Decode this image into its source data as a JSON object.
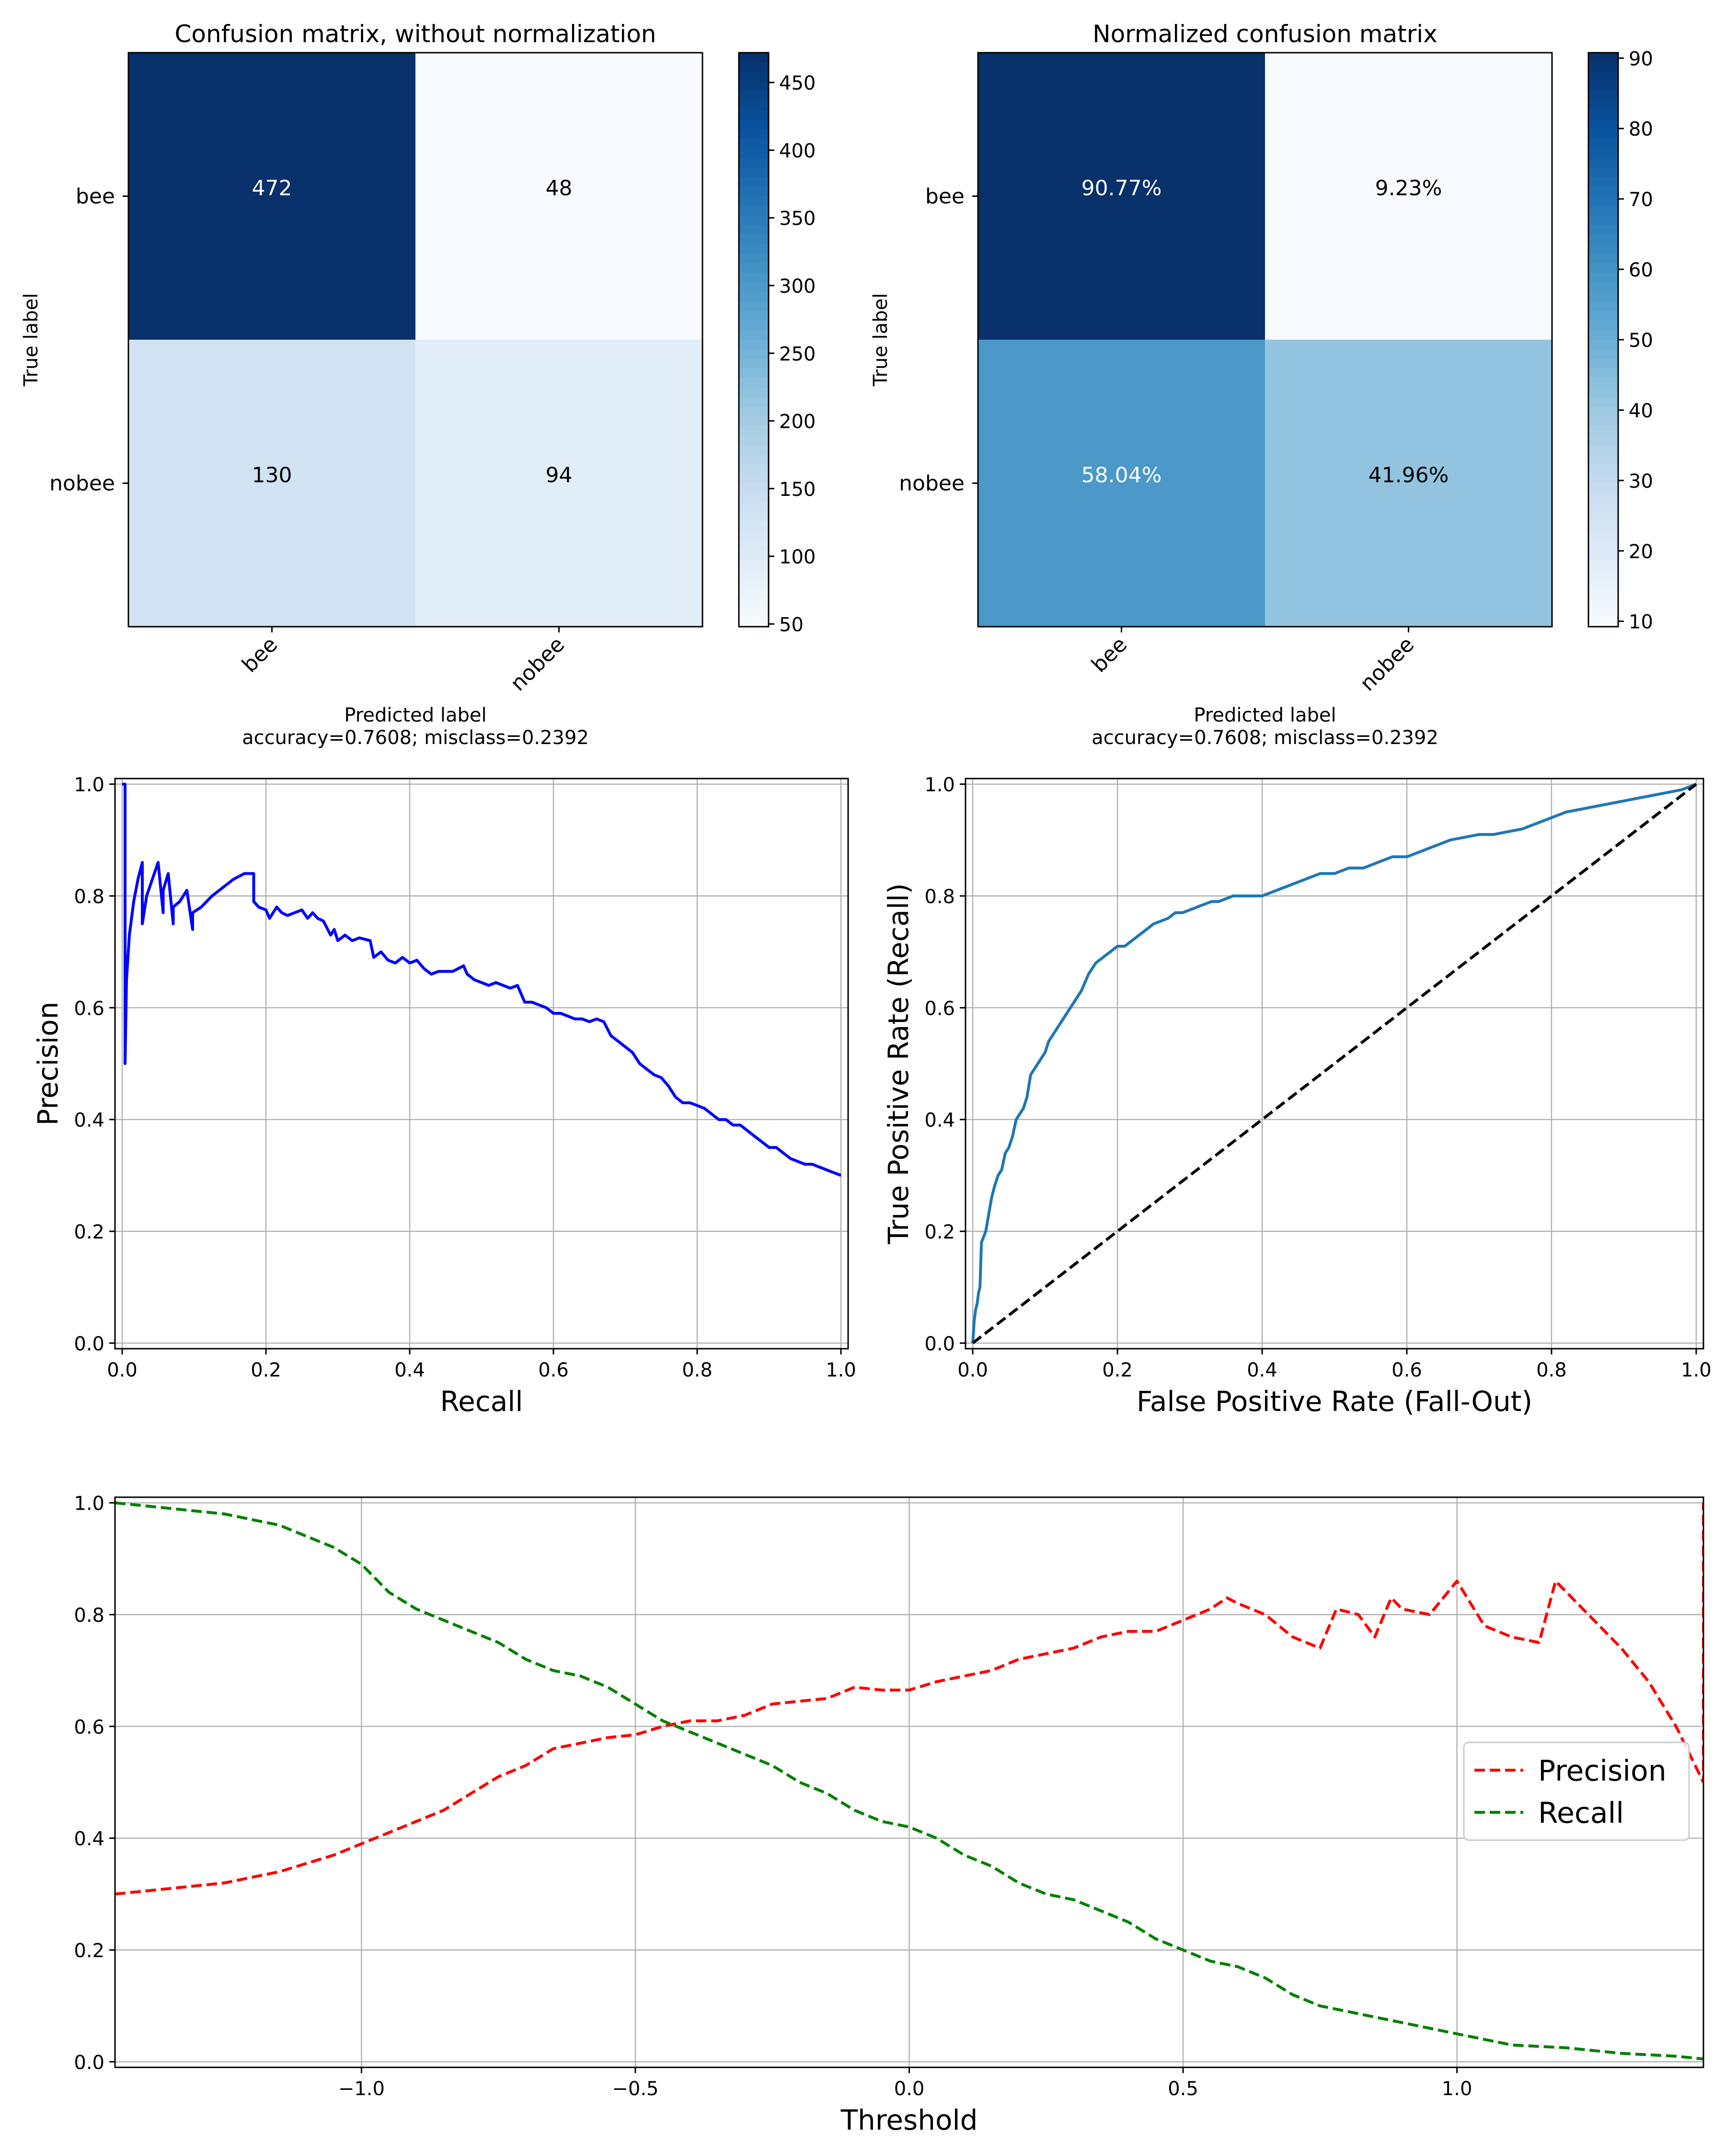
{
  "chart_data": [
    {
      "type": "heatmap",
      "title": "Confusion matrix, without normalization",
      "ylabel": "True label",
      "xlabel": "Predicted label",
      "xlabel_line2": "accuracy=0.7608; misclass=0.2392",
      "row_labels": [
        "bee",
        "nobee"
      ],
      "col_labels": [
        "bee",
        "nobee"
      ],
      "cell_labels": [
        [
          "472",
          "48"
        ],
        [
          "130",
          "94"
        ]
      ],
      "values": [
        [
          472,
          48
        ],
        [
          130,
          94
        ]
      ],
      "colorscale": "Blues",
      "colorbar_ticks": [
        "50",
        "100",
        "150",
        "200",
        "250",
        "300",
        "350",
        "400",
        "450"
      ],
      "colorbar_range": [
        48,
        472
      ]
    },
    {
      "type": "heatmap",
      "title": "Normalized confusion matrix",
      "ylabel": "True label",
      "xlabel": "Predicted label",
      "xlabel_line2": "accuracy=0.7608; misclass=0.2392",
      "row_labels": [
        "bee",
        "nobee"
      ],
      "col_labels": [
        "bee",
        "nobee"
      ],
      "cell_labels": [
        [
          "90.77%",
          "9.23%"
        ],
        [
          "58.04%",
          "41.96%"
        ]
      ],
      "values": [
        [
          90.77,
          9.23
        ],
        [
          58.04,
          41.96
        ]
      ],
      "colorscale": "Blues",
      "colorbar_ticks": [
        "10",
        "20",
        "30",
        "40",
        "50",
        "60",
        "70",
        "80",
        "90"
      ],
      "colorbar_range": [
        9.23,
        90.77
      ]
    },
    {
      "type": "line",
      "xlabel": "Recall",
      "ylabel": "Precision",
      "xlim": [
        -0.01,
        1.01
      ],
      "ylim": [
        -0.01,
        1.01
      ],
      "xticks": [
        "0.0",
        "0.2",
        "0.4",
        "0.6",
        "0.8",
        "1.0"
      ],
      "yticks": [
        "0.0",
        "0.2",
        "0.4",
        "0.6",
        "0.8",
        "1.0"
      ],
      "grid": true,
      "series": [
        {
          "color": "#0000ff",
          "x": [
            0.0,
            0.004,
            0.004,
            0.006,
            0.01,
            0.016,
            0.022,
            0.028,
            0.028,
            0.034,
            0.042,
            0.05,
            0.057,
            0.057,
            0.064,
            0.071,
            0.071,
            0.08,
            0.09,
            0.098,
            0.098,
            0.11,
            0.125,
            0.14,
            0.155,
            0.17,
            0.183,
            0.183,
            0.19,
            0.2,
            0.205,
            0.215,
            0.222,
            0.23,
            0.24,
            0.25,
            0.258,
            0.265,
            0.272,
            0.28,
            0.29,
            0.295,
            0.3,
            0.31,
            0.32,
            0.33,
            0.345,
            0.35,
            0.36,
            0.37,
            0.38,
            0.39,
            0.4,
            0.41,
            0.42,
            0.43,
            0.44,
            0.46,
            0.475,
            0.48,
            0.49,
            0.5,
            0.51,
            0.52,
            0.53,
            0.54,
            0.55,
            0.56,
            0.57,
            0.58,
            0.59,
            0.6,
            0.61,
            0.62,
            0.63,
            0.64,
            0.65,
            0.66,
            0.67,
            0.68,
            0.69,
            0.7,
            0.71,
            0.72,
            0.73,
            0.74,
            0.75,
            0.76,
            0.77,
            0.78,
            0.79,
            0.8,
            0.81,
            0.82,
            0.83,
            0.84,
            0.85,
            0.86,
            0.87,
            0.88,
            0.89,
            0.9,
            0.91,
            0.92,
            0.93,
            0.94,
            0.95,
            0.96,
            0.97,
            0.98,
            0.99,
            1.0
          ],
          "y": [
            1.0,
            1.0,
            0.5,
            0.65,
            0.73,
            0.79,
            0.83,
            0.86,
            0.75,
            0.8,
            0.83,
            0.86,
            0.77,
            0.81,
            0.84,
            0.75,
            0.78,
            0.79,
            0.81,
            0.74,
            0.77,
            0.78,
            0.8,
            0.815,
            0.83,
            0.84,
            0.84,
            0.79,
            0.78,
            0.775,
            0.76,
            0.78,
            0.77,
            0.765,
            0.77,
            0.775,
            0.76,
            0.77,
            0.76,
            0.755,
            0.73,
            0.74,
            0.72,
            0.73,
            0.72,
            0.725,
            0.72,
            0.69,
            0.7,
            0.685,
            0.68,
            0.69,
            0.68,
            0.685,
            0.67,
            0.66,
            0.665,
            0.665,
            0.675,
            0.66,
            0.65,
            0.645,
            0.64,
            0.645,
            0.64,
            0.635,
            0.64,
            0.61,
            0.61,
            0.605,
            0.6,
            0.59,
            0.59,
            0.585,
            0.58,
            0.58,
            0.575,
            0.58,
            0.575,
            0.55,
            0.54,
            0.53,
            0.52,
            0.5,
            0.49,
            0.48,
            0.475,
            0.46,
            0.44,
            0.43,
            0.43,
            0.425,
            0.42,
            0.41,
            0.4,
            0.4,
            0.39,
            0.39,
            0.38,
            0.37,
            0.36,
            0.35,
            0.35,
            0.34,
            0.33,
            0.325,
            0.32,
            0.32,
            0.315,
            0.31,
            0.305,
            0.3
          ]
        }
      ]
    },
    {
      "type": "line",
      "xlabel": "False Positive Rate (Fall-Out)",
      "ylabel": "True Positive Rate (Recall)",
      "xlim": [
        -0.01,
        1.01
      ],
      "ylim": [
        -0.01,
        1.01
      ],
      "xticks": [
        "0.0",
        "0.2",
        "0.4",
        "0.6",
        "0.8",
        "1.0"
      ],
      "yticks": [
        "0.0",
        "0.2",
        "0.4",
        "0.6",
        "0.8",
        "1.0"
      ],
      "grid": true,
      "series": [
        {
          "color": "#1f77b4",
          "x": [
            0.0,
            0.002,
            0.004,
            0.006,
            0.008,
            0.01,
            0.012,
            0.015,
            0.018,
            0.022,
            0.026,
            0.03,
            0.035,
            0.04,
            0.045,
            0.05,
            0.055,
            0.06,
            0.065,
            0.07,
            0.075,
            0.08,
            0.085,
            0.09,
            0.095,
            0.1,
            0.105,
            0.11,
            0.115,
            0.12,
            0.125,
            0.13,
            0.135,
            0.14,
            0.15,
            0.16,
            0.17,
            0.18,
            0.19,
            0.2,
            0.21,
            0.22,
            0.23,
            0.24,
            0.25,
            0.26,
            0.27,
            0.28,
            0.29,
            0.3,
            0.31,
            0.32,
            0.33,
            0.34,
            0.36,
            0.38,
            0.4,
            0.42,
            0.44,
            0.46,
            0.48,
            0.5,
            0.52,
            0.54,
            0.56,
            0.58,
            0.6,
            0.62,
            0.64,
            0.66,
            0.68,
            0.7,
            0.72,
            0.74,
            0.76,
            0.78,
            0.8,
            0.82,
            0.84,
            0.86,
            0.88,
            0.9,
            0.92,
            0.94,
            0.96,
            0.98,
            1.0
          ],
          "y": [
            0.0,
            0.04,
            0.06,
            0.07,
            0.09,
            0.1,
            0.18,
            0.19,
            0.2,
            0.23,
            0.26,
            0.28,
            0.3,
            0.31,
            0.34,
            0.35,
            0.37,
            0.4,
            0.41,
            0.42,
            0.44,
            0.48,
            0.49,
            0.5,
            0.51,
            0.52,
            0.54,
            0.55,
            0.56,
            0.57,
            0.58,
            0.59,
            0.6,
            0.61,
            0.63,
            0.66,
            0.68,
            0.69,
            0.7,
            0.71,
            0.71,
            0.72,
            0.73,
            0.74,
            0.75,
            0.755,
            0.76,
            0.77,
            0.77,
            0.775,
            0.78,
            0.785,
            0.79,
            0.79,
            0.8,
            0.8,
            0.8,
            0.81,
            0.82,
            0.83,
            0.84,
            0.84,
            0.85,
            0.85,
            0.86,
            0.87,
            0.87,
            0.88,
            0.89,
            0.9,
            0.905,
            0.91,
            0.91,
            0.915,
            0.92,
            0.93,
            0.94,
            0.95,
            0.955,
            0.96,
            0.965,
            0.97,
            0.975,
            0.98,
            0.985,
            0.99,
            1.0
          ]
        },
        {
          "color": "#000000",
          "dashed": true,
          "x": [
            0.0,
            1.0
          ],
          "y": [
            0.0,
            1.0
          ]
        }
      ]
    },
    {
      "type": "line",
      "xlabel": "Threshold",
      "xlim": [
        -1.45,
        1.45
      ],
      "ylim": [
        -0.01,
        1.01
      ],
      "xticks": [
        -1.0,
        -0.5,
        0.0,
        0.5,
        1.0
      ],
      "xticklabels": [
        "−1.0",
        "−0.5",
        "0.0",
        "0.5",
        "1.0"
      ],
      "yticks": [
        "0.0",
        "0.2",
        "0.4",
        "0.6",
        "0.8",
        "1.0"
      ],
      "grid": true,
      "legend": "right",
      "series": [
        {
          "name": "Precision",
          "color": "#ff0000",
          "dashed": true,
          "x": [
            -1.45,
            -1.35,
            -1.25,
            -1.15,
            -1.05,
            -1.0,
            -0.95,
            -0.9,
            -0.85,
            -0.8,
            -0.75,
            -0.7,
            -0.65,
            -0.6,
            -0.55,
            -0.5,
            -0.45,
            -0.4,
            -0.35,
            -0.3,
            -0.25,
            -0.2,
            -0.15,
            -0.1,
            -0.05,
            0.0,
            0.05,
            0.1,
            0.15,
            0.2,
            0.25,
            0.3,
            0.35,
            0.4,
            0.45,
            0.5,
            0.55,
            0.58,
            0.6,
            0.65,
            0.7,
            0.75,
            0.78,
            0.82,
            0.85,
            0.88,
            0.9,
            0.95,
            1.0,
            1.05,
            1.1,
            1.15,
            1.18,
            1.25,
            1.3,
            1.35,
            1.4,
            1.45,
            1.45
          ],
          "y": [
            0.3,
            0.31,
            0.32,
            0.34,
            0.37,
            0.39,
            0.41,
            0.43,
            0.45,
            0.48,
            0.51,
            0.53,
            0.56,
            0.57,
            0.58,
            0.585,
            0.6,
            0.61,
            0.61,
            0.62,
            0.64,
            0.645,
            0.65,
            0.67,
            0.665,
            0.665,
            0.68,
            0.69,
            0.7,
            0.72,
            0.73,
            0.74,
            0.76,
            0.77,
            0.77,
            0.79,
            0.81,
            0.83,
            0.82,
            0.8,
            0.76,
            0.74,
            0.81,
            0.8,
            0.76,
            0.83,
            0.81,
            0.8,
            0.86,
            0.78,
            0.76,
            0.75,
            0.86,
            0.79,
            0.74,
            0.68,
            0.6,
            0.5,
            1.0
          ]
        },
        {
          "name": "Recall",
          "color": "#008000",
          "dashed": true,
          "x": [
            -1.45,
            -1.35,
            -1.25,
            -1.15,
            -1.05,
            -1.0,
            -0.95,
            -0.9,
            -0.85,
            -0.8,
            -0.75,
            -0.7,
            -0.65,
            -0.6,
            -0.55,
            -0.5,
            -0.45,
            -0.4,
            -0.35,
            -0.3,
            -0.25,
            -0.2,
            -0.15,
            -0.1,
            -0.05,
            0.0,
            0.05,
            0.1,
            0.15,
            0.2,
            0.25,
            0.3,
            0.35,
            0.4,
            0.45,
            0.5,
            0.55,
            0.6,
            0.65,
            0.7,
            0.75,
            0.8,
            0.85,
            0.9,
            0.95,
            1.0,
            1.05,
            1.1,
            1.2,
            1.3,
            1.4,
            1.45
          ],
          "y": [
            1.0,
            0.99,
            0.98,
            0.96,
            0.92,
            0.89,
            0.84,
            0.81,
            0.79,
            0.77,
            0.75,
            0.72,
            0.7,
            0.69,
            0.67,
            0.64,
            0.61,
            0.59,
            0.57,
            0.55,
            0.53,
            0.5,
            0.48,
            0.45,
            0.43,
            0.42,
            0.4,
            0.37,
            0.35,
            0.32,
            0.3,
            0.29,
            0.27,
            0.25,
            0.22,
            0.2,
            0.18,
            0.17,
            0.15,
            0.12,
            0.1,
            0.09,
            0.08,
            0.07,
            0.06,
            0.05,
            0.04,
            0.03,
            0.025,
            0.015,
            0.01,
            0.005
          ]
        }
      ]
    }
  ]
}
